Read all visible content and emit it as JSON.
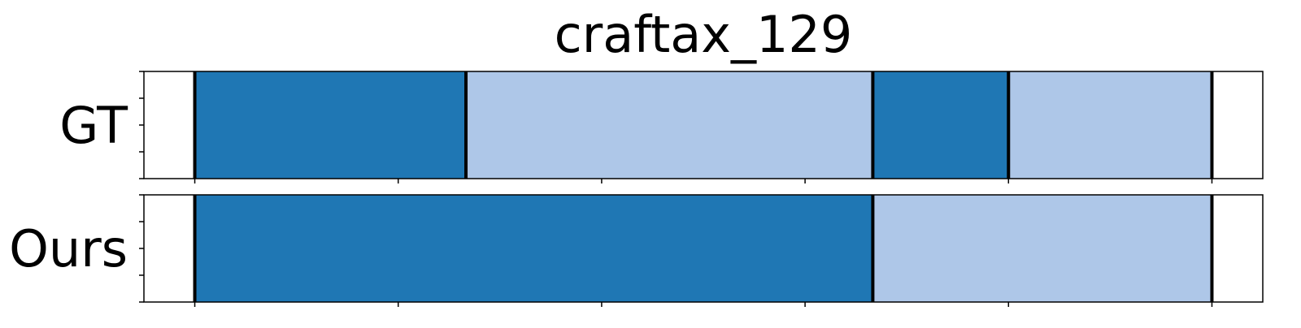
{
  "chart_data": {
    "type": "bar",
    "title": "craftax_129",
    "xlim": [
      0,
      5.5
    ],
    "rows": [
      {
        "label": "GT",
        "segments": [
          {
            "start": 0.25,
            "end": 1.583,
            "class": 0
          },
          {
            "start": 1.583,
            "end": 3.583,
            "class": 1
          },
          {
            "start": 3.583,
            "end": 4.25,
            "class": 0
          },
          {
            "start": 4.25,
            "end": 5.25,
            "class": 1
          }
        ],
        "boundaries": [
          0.25,
          1.583,
          3.583,
          4.25,
          5.25
        ]
      },
      {
        "label": "Ours",
        "segments": [
          {
            "start": 0.25,
            "end": 3.583,
            "class": 0
          },
          {
            "start": 3.583,
            "end": 5.25,
            "class": 1
          }
        ],
        "boundaries": [
          0.25,
          3.583,
          5.25
        ]
      }
    ],
    "x_ticks": [
      0.25,
      1.25,
      2.25,
      3.25,
      4.25,
      5.25
    ],
    "colors": [
      "#1f77b4",
      "#aec7e8"
    ],
    "boundary_color": "#000000",
    "grid": false,
    "legend": "none"
  }
}
